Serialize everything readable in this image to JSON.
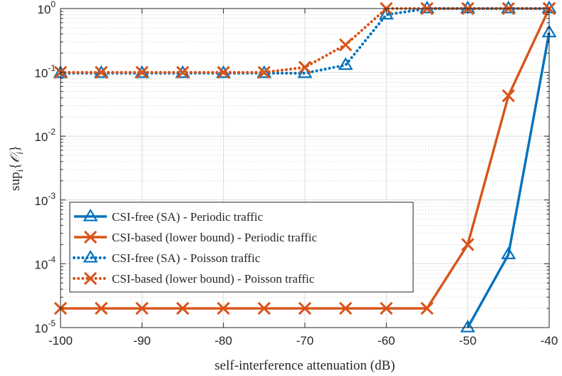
{
  "chart_data": {
    "type": "line",
    "title": "",
    "xlabel": "self-interference attenuation (dB)",
    "ylabel": "sup_i{O_i}",
    "ylabel_parts": {
      "main": "sup",
      "sub": "i",
      "brace_open": "{",
      "symbol": "𝒪",
      "symbol_sub": "i",
      "brace_close": "}"
    },
    "x_scale": "linear",
    "y_scale": "log",
    "xlim": [
      -100,
      -40
    ],
    "ylim": [
      1e-05,
      1
    ],
    "grid": true,
    "legend_position": "lower-left",
    "x_ticks": [
      {
        "value": -100,
        "label": "-100"
      },
      {
        "value": -90,
        "label": "-90"
      },
      {
        "value": -80,
        "label": "-80"
      },
      {
        "value": -70,
        "label": "-70"
      },
      {
        "value": -60,
        "label": "-60"
      },
      {
        "value": -50,
        "label": "-50"
      },
      {
        "value": -40,
        "label": "-40"
      }
    ],
    "y_ticks": [
      {
        "value": 1,
        "base": "10",
        "exp": "0"
      },
      {
        "value": 0.1,
        "base": "10",
        "exp": "-1"
      },
      {
        "value": 0.01,
        "base": "10",
        "exp": "-2"
      },
      {
        "value": 0.001,
        "base": "10",
        "exp": "-3"
      },
      {
        "value": 0.0001,
        "base": "10",
        "exp": "-4"
      },
      {
        "value": 1e-05,
        "base": "10",
        "exp": "-5"
      }
    ],
    "series": [
      {
        "name": "CSI-free (SA) - Periodic traffic",
        "color": "#0072BD",
        "line_style": "solid",
        "marker": "triangle",
        "x": [
          -50,
          -45,
          -40
        ],
        "y": [
          1e-05,
          0.00014,
          0.42
        ]
      },
      {
        "name": "CSI-based (lower bound) - Periodic traffic",
        "color": "#D95319",
        "line_style": "solid",
        "marker": "x",
        "x": [
          -100,
          -95,
          -90,
          -85,
          -80,
          -75,
          -70,
          -65,
          -60,
          -55,
          -50,
          -45,
          -40
        ],
        "y": [
          2e-05,
          2e-05,
          2e-05,
          2e-05,
          2e-05,
          2e-05,
          2e-05,
          2e-05,
          2e-05,
          2e-05,
          0.0002,
          0.043,
          1.0
        ]
      },
      {
        "name": "CSI-free (SA) - Poisson traffic",
        "color": "#0072BD",
        "line_style": "dotted",
        "marker": "triangle",
        "x": [
          -100,
          -95,
          -90,
          -85,
          -80,
          -75,
          -70,
          -65,
          -60,
          -55,
          -50,
          -45,
          -40
        ],
        "y": [
          0.097,
          0.097,
          0.097,
          0.097,
          0.097,
          0.097,
          0.097,
          0.13,
          0.8,
          1.0,
          1.0,
          1.0,
          1.0
        ]
      },
      {
        "name": "CSI-based (lower bound) - Poisson traffic",
        "color": "#D95319",
        "line_style": "dotted",
        "marker": "x",
        "x": [
          -100,
          -95,
          -90,
          -85,
          -80,
          -75,
          -70,
          -65,
          -60,
          -55,
          -50,
          -45,
          -40
        ],
        "y": [
          0.1,
          0.1,
          0.1,
          0.1,
          0.1,
          0.1,
          0.12,
          0.27,
          1.0,
          1.0,
          1.0,
          1.0,
          1.0
        ]
      }
    ]
  }
}
